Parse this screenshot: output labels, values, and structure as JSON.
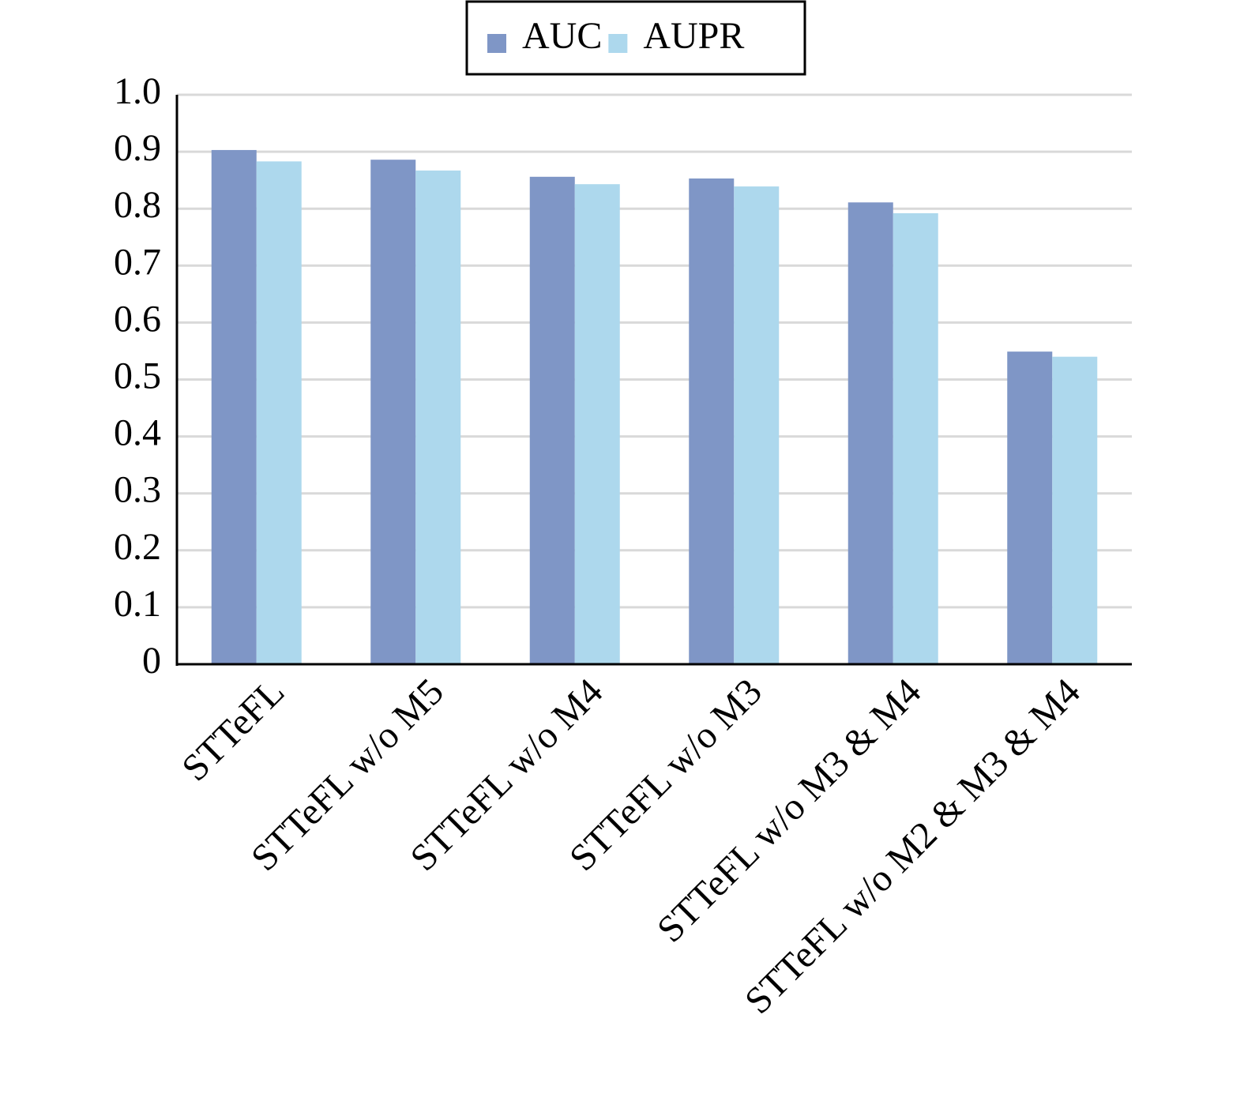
{
  "chart_data": {
    "type": "bar",
    "categories": [
      "STTeFL",
      "STTeFL w/o M5",
      "STTeFL w/o M4",
      "STTeFL w/o M3",
      "STTeFL w/o M3 & M4",
      "STTeFL w/o M2 & M3 & M4"
    ],
    "series": [
      {
        "name": "AUC",
        "color": "#7f96c6",
        "values": [
          0.903,
          0.886,
          0.856,
          0.853,
          0.811,
          0.549
        ]
      },
      {
        "name": "AUPR",
        "color": "#add8ed",
        "values": [
          0.883,
          0.867,
          0.843,
          0.839,
          0.792,
          0.54
        ]
      }
    ],
    "ylim": [
      0,
      1
    ],
    "yticks": [
      0,
      0.1,
      0.2,
      0.3,
      0.4,
      0.5,
      0.6,
      0.7,
      0.8,
      0.9,
      {
        "value": 1,
        "label": "1.0"
      }
    ],
    "grid": true,
    "legend": "top"
  }
}
